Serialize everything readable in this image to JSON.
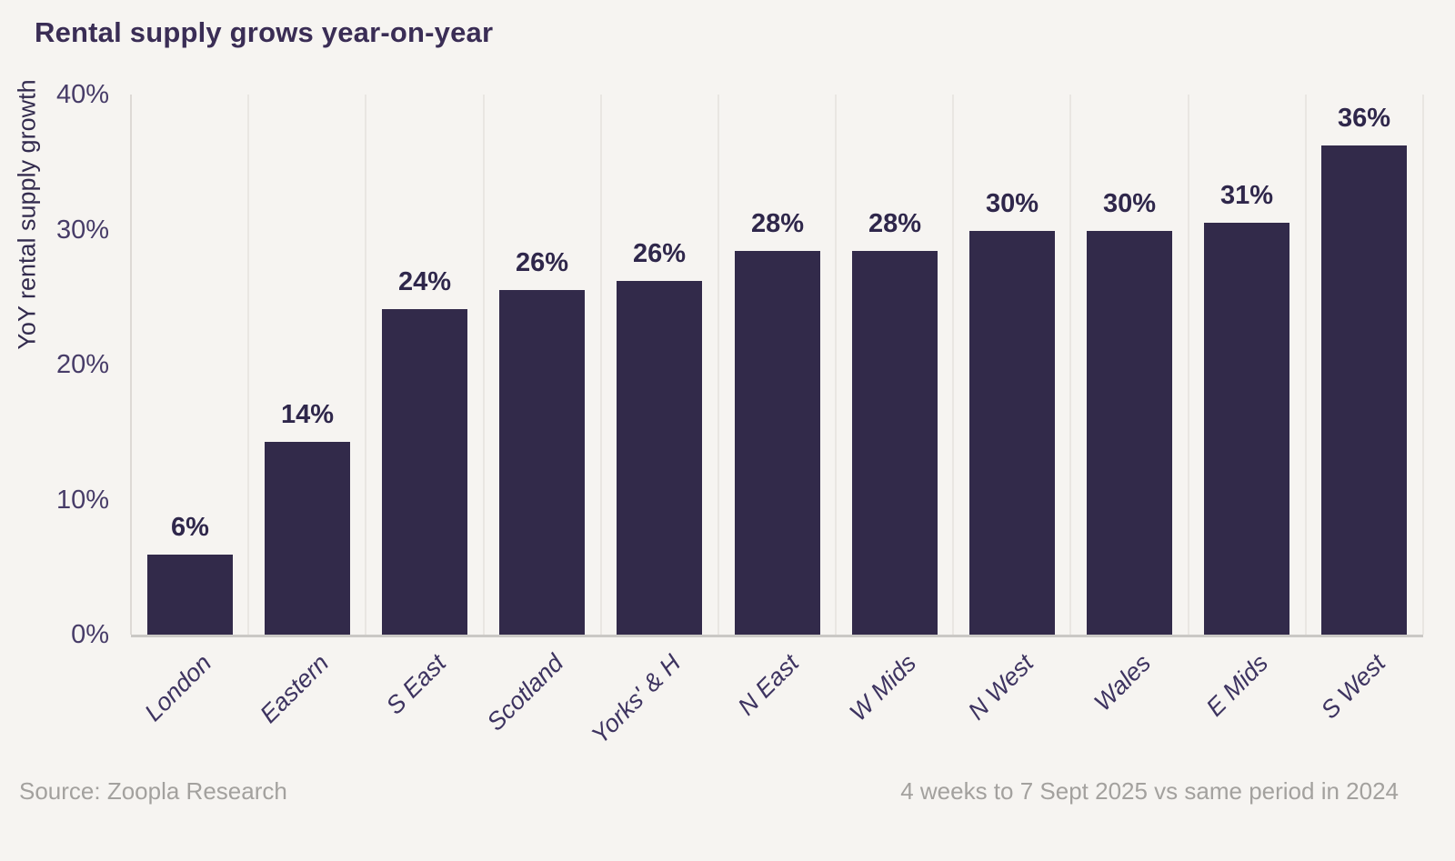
{
  "title": "Rental supply grows year-on-year",
  "footer": {
    "source": "Source: Zoopla Research",
    "note": "4 weeks to 7 Sept 2025 vs same period in 2024"
  },
  "chart_data": {
    "type": "bar",
    "title": "Rental supply grows year-on-year",
    "categories": [
      "London",
      "Eastern",
      "S East",
      "Scotland",
      "Yorks' & H",
      "N East",
      "W Mids",
      "N West",
      "Wales",
      "E Mids",
      "S West"
    ],
    "values": [
      6,
      14,
      24,
      26,
      26,
      28,
      28,
      30,
      30,
      31,
      36
    ],
    "values_precise": [
      5.9,
      14.3,
      24.1,
      25.5,
      26.2,
      28.4,
      28.4,
      29.9,
      29.9,
      30.5,
      36.2
    ],
    "labels": [
      "6%",
      "14%",
      "24%",
      "26%",
      "26%",
      "28%",
      "28%",
      "30%",
      "30%",
      "31%",
      "36%"
    ],
    "xlabel": "",
    "ylabel": "YoY rental supply growth",
    "yticks": [
      "0%",
      "10%",
      "20%",
      "30%",
      "40%"
    ],
    "ytick_values": [
      0,
      10,
      20,
      30,
      40
    ],
    "ylim": [
      0,
      40
    ],
    "grid": "vertical category separators only",
    "legend": "none",
    "colors": {
      "background": "#f6f4f1",
      "bar": "#322a4a",
      "title_text": "#3a2d55",
      "axis_text": "#473c68",
      "value_label_text": "#2f274b",
      "gridline": "#e9e6e2",
      "baseline": "#cac8c5",
      "footer_text": "#a3a19e"
    }
  }
}
